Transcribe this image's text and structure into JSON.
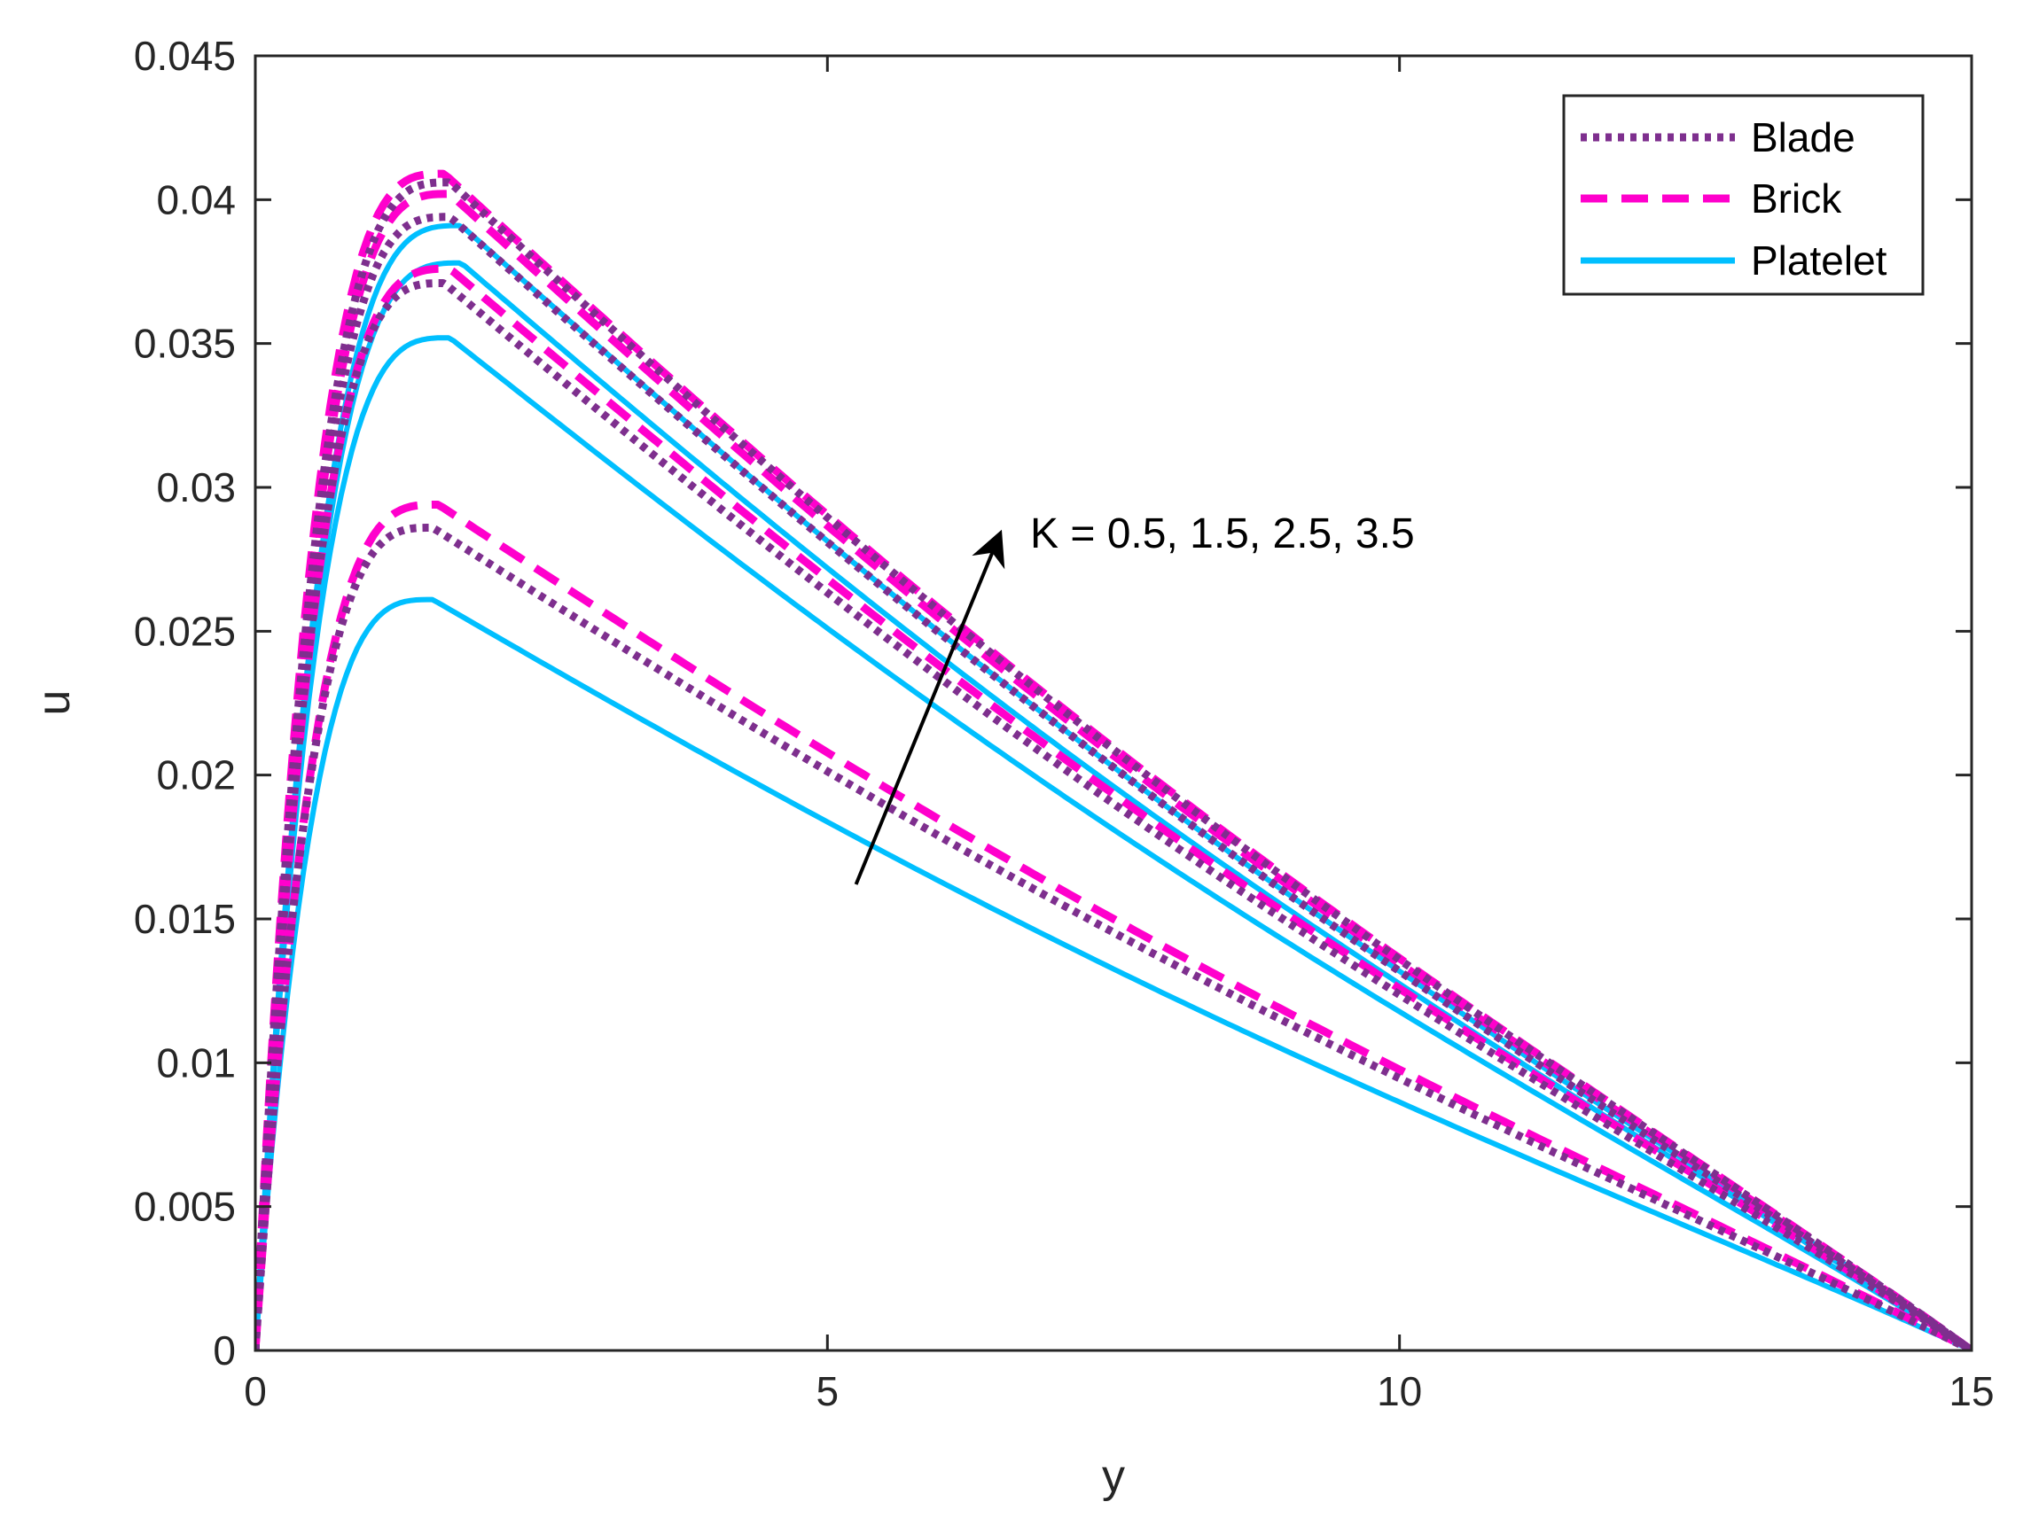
{
  "chart_data": {
    "type": "line",
    "title": "",
    "xlabel": "y",
    "ylabel": "u",
    "xlim": [
      0,
      15
    ],
    "ylim": [
      0,
      0.045
    ],
    "xticks": [
      0,
      5,
      10,
      15
    ],
    "xtick_labels": [
      "0",
      "5",
      "10",
      "15"
    ],
    "yticks": [
      0,
      0.005,
      0.01,
      0.015,
      0.02,
      0.025,
      0.03,
      0.035,
      0.04,
      0.045
    ],
    "ytick_labels": [
      "0",
      "0.005",
      "0.01",
      "0.015",
      "0.02",
      "0.025",
      "0.03",
      "0.035",
      "0.04",
      "0.045"
    ],
    "grid": false,
    "legend_position": "top-right",
    "legend": [
      {
        "label": "Blade",
        "color": "#7E2F8E",
        "style": "dotted"
      },
      {
        "label": "Brick",
        "color": "#FF00CC",
        "style": "dashed"
      },
      {
        "label": "Platelet",
        "color": "#00BFFF",
        "style": "solid"
      }
    ],
    "annotation": {
      "text": "K = 0.5, 1.5, 2.5, 3.5",
      "arrow_from": [
        5.25,
        0.0162
      ],
      "arrow_to": [
        6.5,
        0.0283
      ]
    },
    "series": [
      {
        "group": "Blade",
        "K": 0.5,
        "peak_x": 1.55,
        "peak_y": 0.0286
      },
      {
        "group": "Blade",
        "K": 1.5,
        "peak_x": 1.65,
        "peak_y": 0.0371
      },
      {
        "group": "Blade",
        "K": 2.5,
        "peak_x": 1.7,
        "peak_y": 0.0394
      },
      {
        "group": "Blade",
        "K": 3.5,
        "peak_x": 1.7,
        "peak_y": 0.0406
      },
      {
        "group": "Brick",
        "K": 0.5,
        "peak_x": 1.6,
        "peak_y": 0.0294
      },
      {
        "group": "Brick",
        "K": 1.5,
        "peak_x": 1.7,
        "peak_y": 0.0376
      },
      {
        "group": "Brick",
        "K": 2.5,
        "peak_x": 1.7,
        "peak_y": 0.0402
      },
      {
        "group": "Brick",
        "K": 3.5,
        "peak_x": 1.65,
        "peak_y": 0.0409
      },
      {
        "group": "Platelet",
        "K": 0.5,
        "peak_x": 1.55,
        "peak_y": 0.0261
      },
      {
        "group": "Platelet",
        "K": 1.5,
        "peak_x": 1.7,
        "peak_y": 0.0352
      },
      {
        "group": "Platelet",
        "K": 2.5,
        "peak_x": 1.8,
        "peak_y": 0.0378
      },
      {
        "group": "Platelet",
        "K": 3.5,
        "peak_x": 1.8,
        "peak_y": 0.0391
      }
    ]
  }
}
